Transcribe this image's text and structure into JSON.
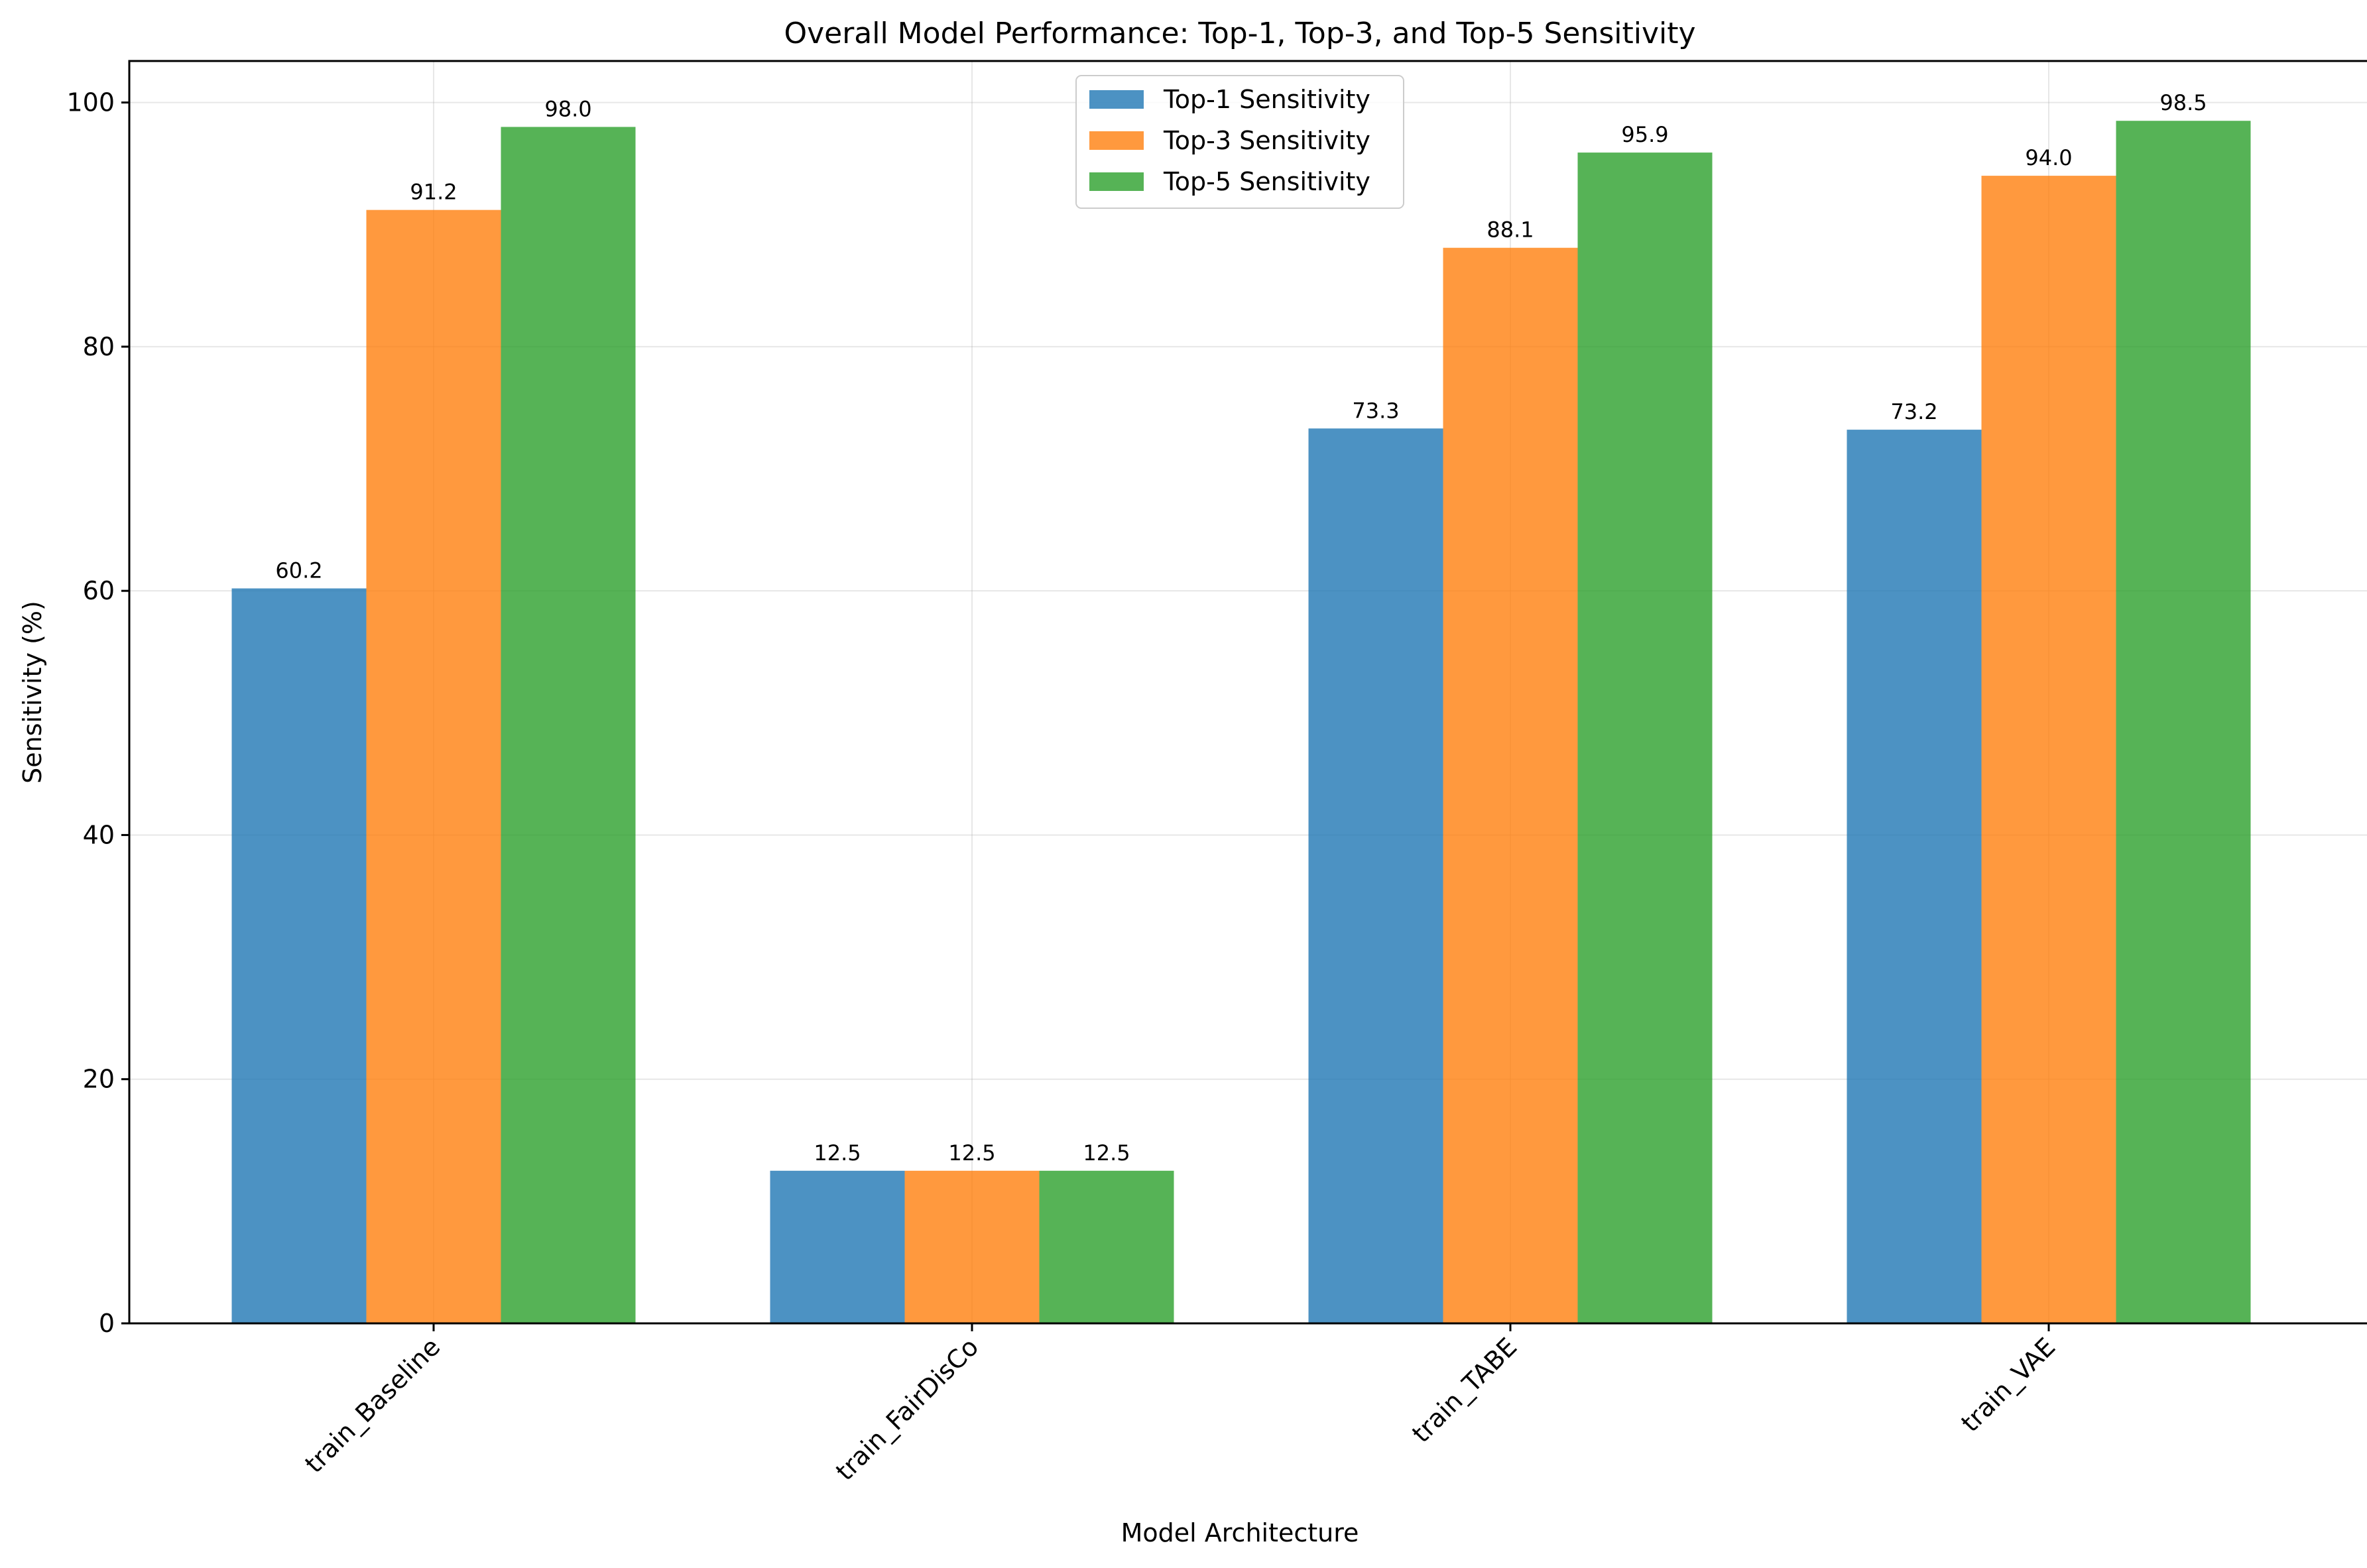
{
  "chart_data": {
    "type": "bar",
    "title": "Overall Model Performance: Top-1, Top-3, and Top-5 Sensitivity",
    "xlabel": "Model Architecture",
    "ylabel": "Sensitivity (%)",
    "ylim": [
      0,
      103.4
    ],
    "yticks": [
      0,
      20,
      40,
      60,
      80,
      100
    ],
    "categories": [
      "train_Baseline",
      "train_FairDisCo",
      "train_TABE",
      "train_VAE"
    ],
    "series": [
      {
        "name": "Top-1 Sensitivity",
        "color": "#1f77b4",
        "values": [
          60.2,
          12.5,
          73.3,
          73.2
        ],
        "labels": [
          "60.2",
          "12.5",
          "73.3",
          "73.2"
        ]
      },
      {
        "name": "Top-3 Sensitivity",
        "color": "#ff7f0e",
        "values": [
          91.2,
          12.5,
          88.1,
          94.0
        ],
        "labels": [
          "91.2",
          "12.5",
          "88.1",
          "94.0"
        ]
      },
      {
        "name": "Top-5 Sensitivity",
        "color": "#2ca02c",
        "values": [
          98.0,
          12.5,
          95.9,
          98.5
        ],
        "labels": [
          "98.0",
          "12.5",
          "95.9",
          "98.5"
        ]
      }
    ],
    "grid": true,
    "legend_position": "top-center",
    "bar_opacity": 0.8
  }
}
